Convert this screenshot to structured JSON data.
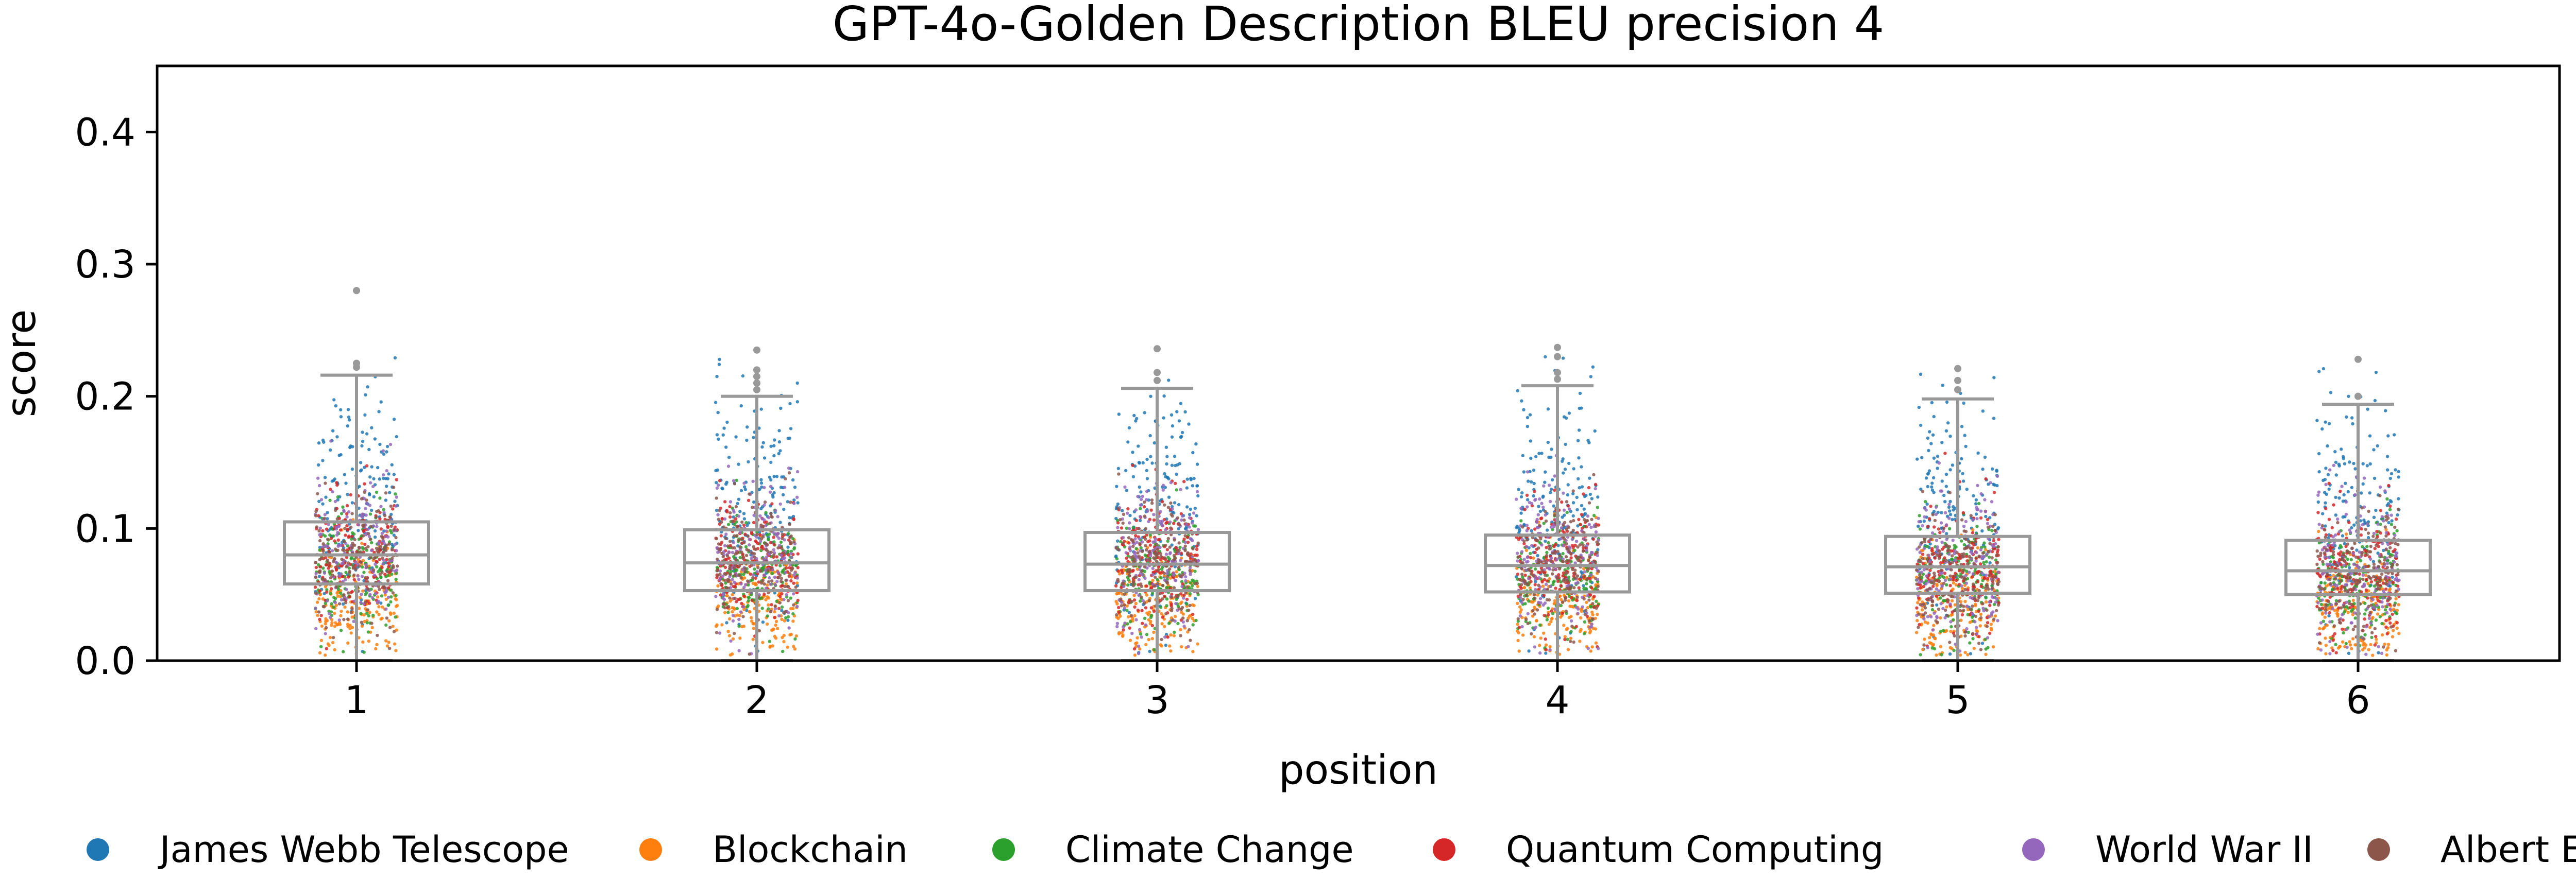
{
  "chart_data": {
    "type": "scatter",
    "subtype": "strip-plot with box overlay",
    "title": "GPT-4o-Golden Description BLEU precision 4",
    "xlabel": "position",
    "ylabel": "score",
    "categories": [
      "1",
      "2",
      "3",
      "4",
      "5",
      "6"
    ],
    "ylim": [
      0.0,
      0.45
    ],
    "yticks": [
      0.0,
      0.1,
      0.2,
      0.3,
      0.4
    ],
    "ytick_labels": [
      "0.0",
      "0.1",
      "0.2",
      "0.3",
      "0.4"
    ],
    "grid": false,
    "legend_position": "bottom",
    "box_color": "#999999",
    "boxes": [
      {
        "category": "1",
        "whisker_low": 0.0,
        "q1": 0.058,
        "median": 0.08,
        "q3": 0.105,
        "whisker_high": 0.216,
        "outliers": [
          0.28,
          0.222,
          0.225
        ]
      },
      {
        "category": "2",
        "whisker_low": 0.0,
        "q1": 0.053,
        "median": 0.074,
        "q3": 0.099,
        "whisker_high": 0.2,
        "outliers": [
          0.205,
          0.21,
          0.215,
          0.22,
          0.235
        ]
      },
      {
        "category": "3",
        "whisker_low": 0.0,
        "q1": 0.053,
        "median": 0.073,
        "q3": 0.097,
        "whisker_high": 0.206,
        "outliers": [
          0.212,
          0.218,
          0.236
        ]
      },
      {
        "category": "4",
        "whisker_low": 0.0,
        "q1": 0.052,
        "median": 0.072,
        "q3": 0.095,
        "whisker_high": 0.208,
        "outliers": [
          0.213,
          0.218,
          0.23,
          0.237
        ]
      },
      {
        "category": "5",
        "whisker_low": 0.0,
        "q1": 0.051,
        "median": 0.071,
        "q3": 0.094,
        "whisker_high": 0.198,
        "outliers": [
          0.205,
          0.212,
          0.221
        ]
      },
      {
        "category": "6",
        "whisker_low": 0.0,
        "q1": 0.05,
        "median": 0.068,
        "q3": 0.091,
        "whisker_high": 0.194,
        "outliers": [
          0.2,
          0.228
        ]
      }
    ],
    "series": [
      {
        "name": "James Webb Telescope",
        "color": "#1f77b4",
        "center": 0.125,
        "spread": 0.045
      },
      {
        "name": "Blockchain",
        "color": "#ff7f0e",
        "center": 0.045,
        "spread": 0.022
      },
      {
        "name": "Climate Change",
        "color": "#2ca02c",
        "center": 0.07,
        "spread": 0.022
      },
      {
        "name": "Quantum Computing",
        "color": "#d62728",
        "center": 0.08,
        "spread": 0.025
      },
      {
        "name": "World War II",
        "color": "#9467bd",
        "center": 0.082,
        "spread": 0.028
      },
      {
        "name": "Albert Einstein",
        "color": "#8c564b",
        "center": 0.075,
        "spread": 0.024
      }
    ]
  }
}
